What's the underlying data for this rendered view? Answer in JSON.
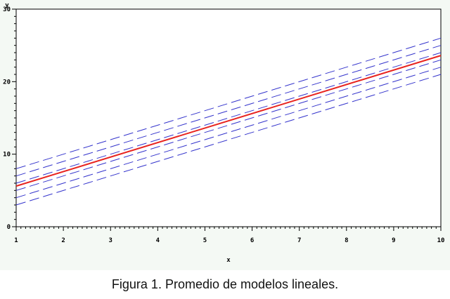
{
  "caption": "Figura 1. Promedio de modelos lineales.",
  "chart_data": {
    "type": "line",
    "title": "",
    "xlabel": "x",
    "ylabel": "y",
    "xlim": [
      1,
      10
    ],
    "ylim": [
      0,
      30
    ],
    "x_ticks": [
      "1",
      "2",
      "3",
      "4",
      "5",
      "6",
      "7",
      "8",
      "9",
      "10"
    ],
    "y_ticks": [
      "0",
      "10",
      "20",
      "30"
    ],
    "x_minor_ticks_per_major": 10,
    "y_minor_ticks_per_major": 10,
    "grid": false,
    "x": [
      1,
      10
    ],
    "series": [
      {
        "style": "dashed",
        "color": "#3333cc",
        "values": [
          8.0,
          26.0
        ]
      },
      {
        "style": "dashed",
        "color": "#3333cc",
        "values": [
          7.0,
          25.0
        ]
      },
      {
        "style": "dashed",
        "color": "#3333cc",
        "values": [
          6.0,
          24.0
        ]
      },
      {
        "style": "solid",
        "color": "#e8241f",
        "values": [
          5.6,
          23.6
        ]
      },
      {
        "style": "dashed",
        "color": "#3333cc",
        "values": [
          5.0,
          23.0
        ]
      },
      {
        "style": "dashed",
        "color": "#3333cc",
        "values": [
          4.0,
          22.0
        ]
      },
      {
        "style": "dashed",
        "color": "#3333cc",
        "values": [
          3.0,
          21.0
        ]
      }
    ]
  }
}
